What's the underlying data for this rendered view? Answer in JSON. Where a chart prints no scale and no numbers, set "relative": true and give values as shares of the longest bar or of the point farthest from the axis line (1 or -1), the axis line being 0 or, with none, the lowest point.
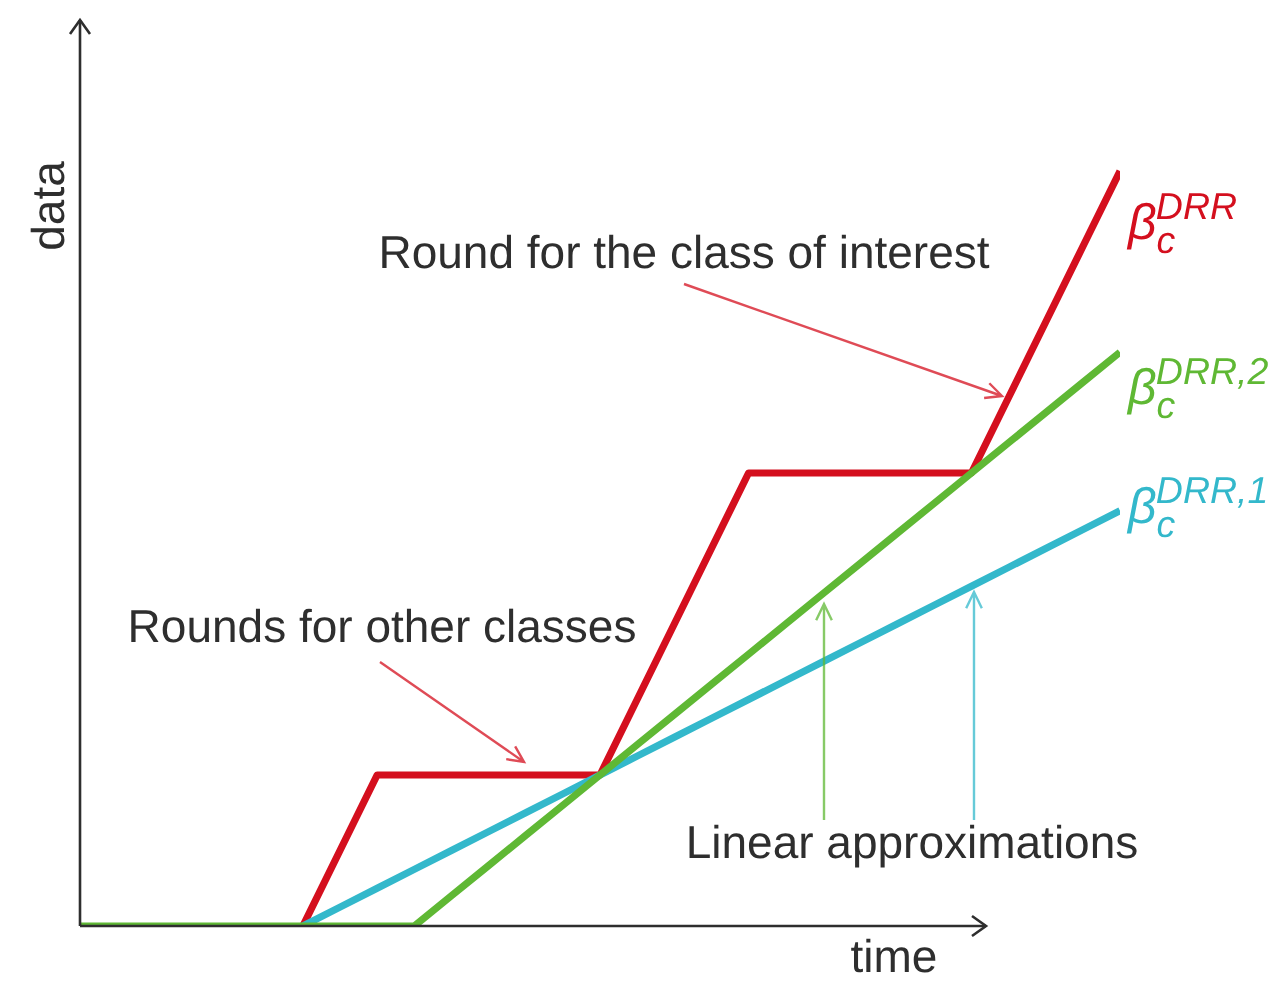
{
  "chart_data": {
    "type": "line",
    "relative": true,
    "xlabel": "time",
    "ylabel": "data",
    "categories": [
      null,
      null,
      null,
      null,
      null,
      null,
      null,
      null,
      null,
      null,
      null,
      null,
      null,
      null,
      null,
      null,
      null,
      null,
      null,
      null,
      null,
      null,
      null,
      null,
      null,
      null,
      null,
      null,
      null
    ],
    "series": [
      {
        "name": "β$_{c}$$^{DRR}$",
        "color": "#d40f1e",
        "values": [
          null,
          null,
          null,
          null,
          null,
          null,
          0,
          0.1,
          0.2,
          0.2,
          0.2,
          0.2,
          0.2,
          0.2,
          0.2,
          0.3,
          0.4,
          0.5,
          0.6,
          0.6,
          0.6,
          0.6,
          0.6,
          0.6,
          0.6,
          0.7,
          0.8,
          0.9,
          1
        ]
      },
      {
        "name": "β$_{c}$$^{DRR,1}$",
        "color": "#33b8cb",
        "values": [
          null,
          null,
          null,
          null,
          null,
          null,
          0,
          0.025,
          0.05,
          0.075,
          0.1,
          0.125,
          0.15,
          0.175,
          0.2,
          0.225,
          0.25,
          0.275,
          0.3,
          0.325,
          0.35,
          0.375,
          0.4,
          0.425,
          0.45,
          0.475,
          0.5,
          0.525,
          0.55
        ]
      },
      {
        "name": "β$_{c}$$^{DRR,2}$",
        "color": "#5fb834",
        "values": [
          0,
          0,
          0,
          0,
          0,
          0,
          0,
          0,
          0,
          0,
          0.04,
          0.08,
          0.12,
          0.16,
          0.2,
          0.24,
          0.28,
          0.32,
          0.36,
          0.4,
          0.44,
          0.48,
          0.52,
          0.56,
          0.6,
          0.64,
          0.68,
          0.72,
          0.76
        ]
      }
    ],
    "annotations": [
      "Round for the class of interest",
      "Rounds for other classes",
      "Linear approximations"
    ]
  }
}
